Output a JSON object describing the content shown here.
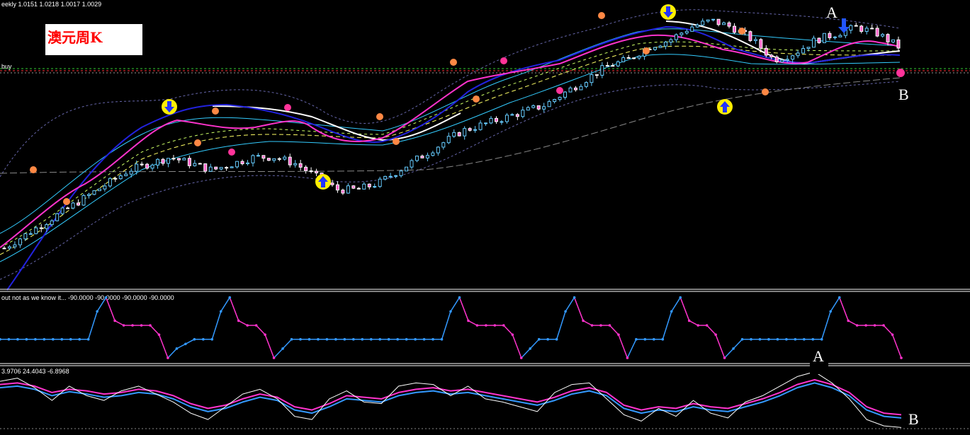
{
  "main_panel": {
    "header_text": "eekly  1.0151 1.0218 1.0017 1.0029",
    "side_label": "buy",
    "title": "澳元周K"
  },
  "osc1_panel": {
    "header_text": "out not as we know it...  -90.0000 -90.0000 -90.0000 -90.0000"
  },
  "osc2_panel": {
    "header_text": "3.9706 24.4043 -6.8968"
  },
  "annotations": {
    "a_top": "A",
    "b_top": "B",
    "a_bottom": "A",
    "b_bottom": "B"
  },
  "colors": {
    "background": "#000000",
    "bull_candle": "#66ccff",
    "bear_candle": "#ffffff",
    "bear_body": "#ff66cc",
    "ma_blue": "#2222dd",
    "ma_magenta": "#ff33cc",
    "ma_white": "#ffffff",
    "ma_yellow": "#ffff66",
    "band_cyan": "#33ccff",
    "band_dotted": "#6666aa",
    "long_ma": "#999999",
    "osc_blue": "#3399ff",
    "osc_pink": "#ff33cc",
    "level_red": "#ff3333",
    "level_green": "#33cc33",
    "title_text": "#ff0000"
  },
  "chart_data": [
    {
      "type": "line",
      "panel": "price",
      "series": [
        {
          "values": [
            0.73,
            0.75,
            0.77,
            0.79,
            0.81,
            0.83,
            0.85,
            0.86,
            0.87,
            0.86,
            0.85,
            0.86,
            0.87,
            0.87,
            0.86,
            0.84,
            0.82,
            0.82,
            0.83,
            0.85,
            0.87,
            0.89,
            0.91,
            0.92,
            0.93,
            0.94,
            0.95,
            0.97,
            0.99,
            1.01,
            1.02,
            1.04,
            1.05,
            1.07,
            1.08,
            1.07,
            1.05,
            1.02,
            1.03,
            1.05,
            1.06,
            1.07,
            1.06,
            1.04
          ]
        }
      ],
      "markers": [
        {
          "kind": "sell-arrow",
          "label": "A",
          "index": 40
        },
        {
          "kind": "buy-arrow",
          "label": "B",
          "index": 43
        }
      ]
    },
    {
      "type": "line",
      "panel": "oscillator-1",
      "series": [
        {
          "values": [
            -50,
            -50,
            -50,
            -50,
            -50,
            -50,
            -50,
            -50,
            -50,
            -50,
            -50,
            10,
            40,
            -10,
            -20,
            -20,
            -20,
            -20,
            -40,
            -90,
            -70,
            -60,
            -50,
            -50,
            -50,
            10,
            40,
            -10,
            -20,
            -20,
            -40,
            -90,
            -70,
            -50,
            -50,
            -50,
            -50,
            -50,
            -50,
            -50,
            -50,
            -50,
            -50,
            -50,
            -50,
            -50,
            -50,
            -50,
            -50,
            -50,
            -50,
            10,
            40,
            -10,
            -20,
            -20,
            -20,
            -20,
            -40,
            -90,
            -70,
            -50,
            -50,
            -50,
            10,
            40,
            -10,
            -20,
            -20,
            -20,
            -40,
            -90,
            -50,
            -50,
            -50,
            -50,
            10,
            40,
            -10,
            -20,
            -20,
            -40,
            -90,
            -70,
            -50,
            -50,
            -50,
            -50,
            -50,
            -50,
            -50,
            -50,
            -50,
            -50,
            10,
            40,
            -10,
            -20,
            -20,
            -20,
            -20,
            -40,
            -90
          ]
        }
      ]
    },
    {
      "type": "line",
      "panel": "oscillator-2",
      "series": [
        {
          "values": [
            20,
            22,
            18,
            10,
            15,
            12,
            8,
            10,
            14,
            12,
            6,
            -4,
            -10,
            -6,
            2,
            8,
            4,
            -8,
            -12,
            -4,
            6,
            4,
            2,
            10,
            14,
            16,
            12,
            14,
            10,
            6,
            2,
            -2,
            4,
            12,
            16,
            10,
            -6,
            -12,
            -8,
            -10,
            -4,
            -8,
            -10,
            -4,
            2,
            10,
            20,
            26,
            20,
            10,
            -8,
            -16,
            -18
          ]
        },
        {
          "values": [
            24,
            26,
            22,
            14,
            18,
            16,
            12,
            14,
            18,
            16,
            10,
            0,
            -6,
            -2,
            6,
            12,
            8,
            -4,
            -8,
            0,
            10,
            8,
            6,
            14,
            18,
            20,
            16,
            18,
            14,
            10,
            6,
            2,
            8,
            16,
            20,
            14,
            -2,
            -8,
            -4,
            -6,
            0,
            -4,
            -6,
            0,
            6,
            14,
            24,
            30,
            24,
            14,
            -4,
            -12,
            -14
          ]
        },
        {
          "values": [
            28,
            32,
            20,
            4,
            22,
            10,
            4,
            16,
            22,
            12,
            2,
            -12,
            -20,
            -4,
            12,
            18,
            6,
            -16,
            -20,
            6,
            16,
            2,
            0,
            22,
            26,
            24,
            10,
            22,
            6,
            2,
            -4,
            -10,
            14,
            24,
            26,
            6,
            -14,
            -22,
            -6,
            -16,
            4,
            -12,
            -18,
            2,
            10,
            22,
            34,
            40,
            26,
            6,
            -20,
            -28,
            -30
          ]
        }
      ]
    }
  ]
}
